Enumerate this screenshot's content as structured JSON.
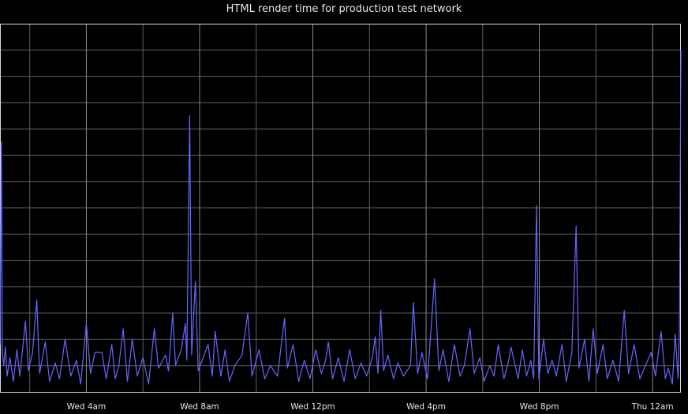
{
  "chart_data": {
    "type": "line",
    "title": "HTML render time for production test network",
    "xlabel": "",
    "ylabel": "",
    "x_ticks": [
      "Wed  4am",
      "Wed  8am",
      "Wed 12pm",
      "Wed  4pm",
      "Wed  8pm",
      "Thu 12am"
    ],
    "tick_hours": [
      4,
      8,
      12,
      16,
      20,
      24
    ],
    "x_range_hours": [
      0.95,
      25.0
    ],
    "ylim": [
      0,
      14
    ],
    "grid": true,
    "legend": "none",
    "colors": {
      "background": "#000000",
      "grid": "#5f5f5f",
      "axes": "#d8d8d8",
      "line": "#6666ff",
      "text": "#e8e8e8"
    },
    "series": [
      {
        "points": [
          [
            0.95,
            1.8
          ],
          [
            1.0,
            9.5
          ],
          [
            1.03,
            1.5
          ],
          [
            1.08,
            1.0
          ],
          [
            1.14,
            1.7
          ],
          [
            1.2,
            0.6
          ],
          [
            1.3,
            1.3
          ],
          [
            1.42,
            0.4
          ],
          [
            1.55,
            1.6
          ],
          [
            1.65,
            0.6
          ],
          [
            1.85,
            2.7
          ],
          [
            1.95,
            0.8
          ],
          [
            2.1,
            1.5
          ],
          [
            2.25,
            3.5
          ],
          [
            2.35,
            0.7
          ],
          [
            2.55,
            1.9
          ],
          [
            2.7,
            0.4
          ],
          [
            2.9,
            1.1
          ],
          [
            3.05,
            0.5
          ],
          [
            3.25,
            2.0
          ],
          [
            3.45,
            0.6
          ],
          [
            3.65,
            1.2
          ],
          [
            3.8,
            0.3
          ],
          [
            4.0,
            2.6
          ],
          [
            4.15,
            0.7
          ],
          [
            4.3,
            1.5
          ],
          [
            4.55,
            1.5
          ],
          [
            4.7,
            0.5
          ],
          [
            4.9,
            1.8
          ],
          [
            5.02,
            0.5
          ],
          [
            5.15,
            1.0
          ],
          [
            5.3,
            2.4
          ],
          [
            5.45,
            0.4
          ],
          [
            5.62,
            2.0
          ],
          [
            5.8,
            0.6
          ],
          [
            6.0,
            1.3
          ],
          [
            6.2,
            0.3
          ],
          [
            6.4,
            2.4
          ],
          [
            6.55,
            0.9
          ],
          [
            6.8,
            1.4
          ],
          [
            6.9,
            0.8
          ],
          [
            7.05,
            3.0
          ],
          [
            7.15,
            1.0
          ],
          [
            7.35,
            1.6
          ],
          [
            7.5,
            2.6
          ],
          [
            7.55,
            1.2
          ],
          [
            7.65,
            10.5
          ],
          [
            7.72,
            1.4
          ],
          [
            7.85,
            4.2
          ],
          [
            7.95,
            0.8
          ],
          [
            8.3,
            1.8
          ],
          [
            8.45,
            0.6
          ],
          [
            8.55,
            2.3
          ],
          [
            8.75,
            0.6
          ],
          [
            8.9,
            1.6
          ],
          [
            9.05,
            0.4
          ],
          [
            9.25,
            1.0
          ],
          [
            9.5,
            1.4
          ],
          [
            9.7,
            3.0
          ],
          [
            9.85,
            0.6
          ],
          [
            10.1,
            1.6
          ],
          [
            10.3,
            0.5
          ],
          [
            10.5,
            1.0
          ],
          [
            10.75,
            0.6
          ],
          [
            11.0,
            2.8
          ],
          [
            11.1,
            0.9
          ],
          [
            11.3,
            1.8
          ],
          [
            11.5,
            0.4
          ],
          [
            11.7,
            1.2
          ],
          [
            11.9,
            0.5
          ],
          [
            12.1,
            1.6
          ],
          [
            12.3,
            0.7
          ],
          [
            12.45,
            1.2
          ],
          [
            12.55,
            1.9
          ],
          [
            12.7,
            0.5
          ],
          [
            12.9,
            1.3
          ],
          [
            13.1,
            0.4
          ],
          [
            13.3,
            1.6
          ],
          [
            13.5,
            0.5
          ],
          [
            13.7,
            1.1
          ],
          [
            13.9,
            0.6
          ],
          [
            14.1,
            1.3
          ],
          [
            14.2,
            2.1
          ],
          [
            14.3,
            0.7
          ],
          [
            14.4,
            3.1
          ],
          [
            14.5,
            0.8
          ],
          [
            14.65,
            1.4
          ],
          [
            14.85,
            0.5
          ],
          [
            15.0,
            1.1
          ],
          [
            15.2,
            0.6
          ],
          [
            15.45,
            1.0
          ],
          [
            15.55,
            3.4
          ],
          [
            15.7,
            0.7
          ],
          [
            15.85,
            1.5
          ],
          [
            16.05,
            0.5
          ],
          [
            16.15,
            2.0
          ],
          [
            16.3,
            4.3
          ],
          [
            16.45,
            0.8
          ],
          [
            16.6,
            1.6
          ],
          [
            16.8,
            0.4
          ],
          [
            17.0,
            1.8
          ],
          [
            17.2,
            0.6
          ],
          [
            17.35,
            1.0
          ],
          [
            17.55,
            2.4
          ],
          [
            17.7,
            0.7
          ],
          [
            17.9,
            1.3
          ],
          [
            18.05,
            0.4
          ],
          [
            18.25,
            1.0
          ],
          [
            18.4,
            0.6
          ],
          [
            18.55,
            1.8
          ],
          [
            18.75,
            0.5
          ],
          [
            18.9,
            1.1
          ],
          [
            19.0,
            1.7
          ],
          [
            19.25,
            0.5
          ],
          [
            19.4,
            1.6
          ],
          [
            19.55,
            0.6
          ],
          [
            19.7,
            1.2
          ],
          [
            19.8,
            0.5
          ],
          [
            19.9,
            7.1
          ],
          [
            19.98,
            0.5
          ],
          [
            20.15,
            2.0
          ],
          [
            20.3,
            0.7
          ],
          [
            20.45,
            1.2
          ],
          [
            20.6,
            0.6
          ],
          [
            20.8,
            1.8
          ],
          [
            20.95,
            0.4
          ],
          [
            21.15,
            1.5
          ],
          [
            21.3,
            6.3
          ],
          [
            21.4,
            0.9
          ],
          [
            21.6,
            2.0
          ],
          [
            21.75,
            0.4
          ],
          [
            21.9,
            2.4
          ],
          [
            22.05,
            0.7
          ],
          [
            22.25,
            1.8
          ],
          [
            22.4,
            0.5
          ],
          [
            22.6,
            1.2
          ],
          [
            22.8,
            0.4
          ],
          [
            23.0,
            3.1
          ],
          [
            23.15,
            0.7
          ],
          [
            23.35,
            1.8
          ],
          [
            23.55,
            0.5
          ],
          [
            23.75,
            1.0
          ],
          [
            23.95,
            1.5
          ],
          [
            24.1,
            0.6
          ],
          [
            24.3,
            2.3
          ],
          [
            24.45,
            0.5
          ],
          [
            24.55,
            0.9
          ],
          [
            24.7,
            0.3
          ],
          [
            24.8,
            2.2
          ],
          [
            24.9,
            0.5
          ],
          [
            24.95,
            2.5
          ],
          [
            25.0,
            13.0
          ]
        ]
      }
    ]
  }
}
